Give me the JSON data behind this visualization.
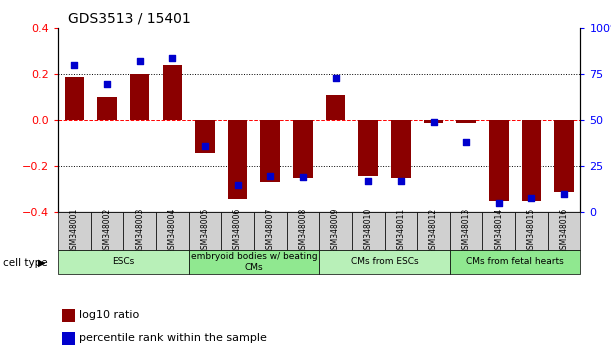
{
  "title": "GDS3513 / 15401",
  "samples": [
    "GSM348001",
    "GSM348002",
    "GSM348003",
    "GSM348004",
    "GSM348005",
    "GSM348006",
    "GSM348007",
    "GSM348008",
    "GSM348009",
    "GSM348010",
    "GSM348011",
    "GSM348012",
    "GSM348013",
    "GSM348014",
    "GSM348015",
    "GSM348016"
  ],
  "log10_ratio": [
    0.19,
    0.1,
    0.2,
    0.24,
    -0.14,
    -0.34,
    -0.27,
    -0.25,
    0.11,
    -0.24,
    -0.25,
    -0.01,
    -0.01,
    -0.35,
    -0.35,
    -0.31
  ],
  "percentile_rank": [
    80,
    70,
    82,
    84,
    36,
    15,
    20,
    19,
    73,
    17,
    17,
    49,
    38,
    5,
    8,
    10
  ],
  "cell_type_groups": [
    {
      "label": "ESCs",
      "start": 0,
      "end": 3
    },
    {
      "label": "embryoid bodies w/ beating\nCMs",
      "start": 4,
      "end": 7
    },
    {
      "label": "CMs from ESCs",
      "start": 8,
      "end": 11
    },
    {
      "label": "CMs from fetal hearts",
      "start": 12,
      "end": 15
    }
  ],
  "group_colors": [
    "#b8f0b8",
    "#90e890",
    "#b8f0b8",
    "#90e890"
  ],
  "bar_color": "#8B0000",
  "dot_color": "#0000CD",
  "ylim_left": [
    -0.4,
    0.4
  ],
  "ylim_right": [
    0,
    100
  ],
  "yticks_left": [
    -0.4,
    -0.2,
    0.0,
    0.2,
    0.4
  ],
  "yticks_right": [
    0,
    25,
    50,
    75,
    100
  ],
  "cell_type_label": "cell type",
  "legend_label1": "log10 ratio",
  "legend_label2": "percentile rank within the sample"
}
